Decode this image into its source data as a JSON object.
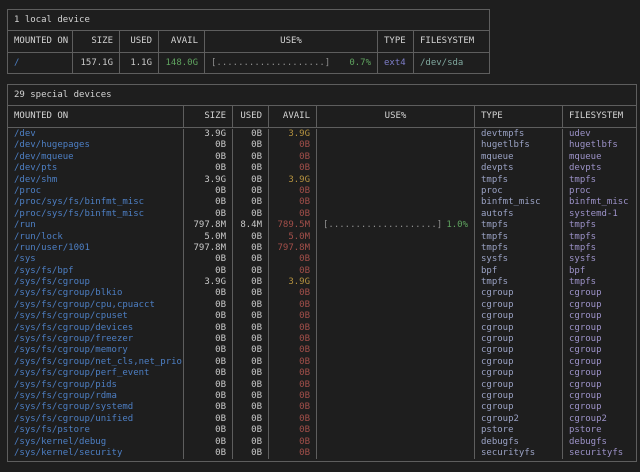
{
  "palette": {
    "background": "#1e1e1e",
    "border": "#5e5e5e",
    "title_text": "#d4d4d4",
    "header_text": "#d4d4d4",
    "blue": "#4d7fc4",
    "white": "#c9c9c9",
    "green": "#5fa35f",
    "yellow": "#b5923f",
    "red": "#a34f4a",
    "purple": "#7d7dc8",
    "teal": "#7fa79e",
    "lavender": "#9aa2c4",
    "violet": "#9c92c8",
    "gray": "#8f8f8f"
  },
  "tables": [
    {
      "title": "1 local device",
      "headers": [
        "MOUNTED ON",
        "SIZE",
        "USED",
        "AVAIL",
        "USE%",
        "TYPE",
        "FILESYSTEM"
      ],
      "mount_color": "blue",
      "value_color": "white",
      "bar_color": "gray",
      "pct_color": "green",
      "type_color": "purple",
      "fs_color": "teal",
      "rows": [
        {
          "mount": "/",
          "size": "157.1G",
          "used": "1.1G",
          "avail": "148.0G",
          "avail_color": "green",
          "bar": "[....................]",
          "pct": "0.7%",
          "type": "ext4",
          "fs": "/dev/sda"
        }
      ]
    },
    {
      "title": "29 special devices",
      "headers": [
        "MOUNTED ON",
        "SIZE",
        "USED",
        "AVAIL",
        "USE%",
        "TYPE",
        "FILESYSTEM"
      ],
      "mount_color": "blue",
      "value_color": "white",
      "bar_color": "gray",
      "pct_color": "green",
      "type_color": "lavender",
      "fs_color": "violet",
      "rows": [
        {
          "mount": "/dev",
          "size": "3.9G",
          "used": "0B",
          "avail": "3.9G",
          "avail_color": "yellow",
          "bar": "",
          "pct": "",
          "type": "devtmpfs",
          "fs": "udev"
        },
        {
          "mount": "/dev/hugepages",
          "size": "0B",
          "used": "0B",
          "avail": "0B",
          "avail_color": "red",
          "bar": "",
          "pct": "",
          "type": "hugetlbfs",
          "fs": "hugetlbfs"
        },
        {
          "mount": "/dev/mqueue",
          "size": "0B",
          "used": "0B",
          "avail": "0B",
          "avail_color": "red",
          "bar": "",
          "pct": "",
          "type": "mqueue",
          "fs": "mqueue"
        },
        {
          "mount": "/dev/pts",
          "size": "0B",
          "used": "0B",
          "avail": "0B",
          "avail_color": "red",
          "bar": "",
          "pct": "",
          "type": "devpts",
          "fs": "devpts"
        },
        {
          "mount": "/dev/shm",
          "size": "3.9G",
          "used": "0B",
          "avail": "3.9G",
          "avail_color": "yellow",
          "bar": "",
          "pct": "",
          "type": "tmpfs",
          "fs": "tmpfs"
        },
        {
          "mount": "/proc",
          "size": "0B",
          "used": "0B",
          "avail": "0B",
          "avail_color": "red",
          "bar": "",
          "pct": "",
          "type": "proc",
          "fs": "proc"
        },
        {
          "mount": "/proc/sys/fs/binfmt_misc",
          "size": "0B",
          "used": "0B",
          "avail": "0B",
          "avail_color": "red",
          "bar": "",
          "pct": "",
          "type": "binfmt_misc",
          "fs": "binfmt_misc"
        },
        {
          "mount": "/proc/sys/fs/binfmt_misc",
          "size": "0B",
          "used": "0B",
          "avail": "0B",
          "avail_color": "red",
          "bar": "",
          "pct": "",
          "type": "autofs",
          "fs": "systemd-1"
        },
        {
          "mount": "/run",
          "size": "797.8M",
          "used": "8.4M",
          "avail": "789.5M",
          "avail_color": "red",
          "bar": "[....................]",
          "pct": "1.0%",
          "type": "tmpfs",
          "fs": "tmpfs"
        },
        {
          "mount": "/run/lock",
          "size": "5.0M",
          "used": "0B",
          "avail": "5.0M",
          "avail_color": "red",
          "bar": "",
          "pct": "",
          "type": "tmpfs",
          "fs": "tmpfs"
        },
        {
          "mount": "/run/user/1001",
          "size": "797.8M",
          "used": "0B",
          "avail": "797.8M",
          "avail_color": "red",
          "bar": "",
          "pct": "",
          "type": "tmpfs",
          "fs": "tmpfs"
        },
        {
          "mount": "/sys",
          "size": "0B",
          "used": "0B",
          "avail": "0B",
          "avail_color": "red",
          "bar": "",
          "pct": "",
          "type": "sysfs",
          "fs": "sysfs"
        },
        {
          "mount": "/sys/fs/bpf",
          "size": "0B",
          "used": "0B",
          "avail": "0B",
          "avail_color": "red",
          "bar": "",
          "pct": "",
          "type": "bpf",
          "fs": "bpf"
        },
        {
          "mount": "/sys/fs/cgroup",
          "size": "3.9G",
          "used": "0B",
          "avail": "3.9G",
          "avail_color": "yellow",
          "bar": "",
          "pct": "",
          "type": "tmpfs",
          "fs": "tmpfs"
        },
        {
          "mount": "/sys/fs/cgroup/blkio",
          "size": "0B",
          "used": "0B",
          "avail": "0B",
          "avail_color": "red",
          "bar": "",
          "pct": "",
          "type": "cgroup",
          "fs": "cgroup"
        },
        {
          "mount": "/sys/fs/cgroup/cpu,cpuacct",
          "size": "0B",
          "used": "0B",
          "avail": "0B",
          "avail_color": "red",
          "bar": "",
          "pct": "",
          "type": "cgroup",
          "fs": "cgroup"
        },
        {
          "mount": "/sys/fs/cgroup/cpuset",
          "size": "0B",
          "used": "0B",
          "avail": "0B",
          "avail_color": "red",
          "bar": "",
          "pct": "",
          "type": "cgroup",
          "fs": "cgroup"
        },
        {
          "mount": "/sys/fs/cgroup/devices",
          "size": "0B",
          "used": "0B",
          "avail": "0B",
          "avail_color": "red",
          "bar": "",
          "pct": "",
          "type": "cgroup",
          "fs": "cgroup"
        },
        {
          "mount": "/sys/fs/cgroup/freezer",
          "size": "0B",
          "used": "0B",
          "avail": "0B",
          "avail_color": "red",
          "bar": "",
          "pct": "",
          "type": "cgroup",
          "fs": "cgroup"
        },
        {
          "mount": "/sys/fs/cgroup/memory",
          "size": "0B",
          "used": "0B",
          "avail": "0B",
          "avail_color": "red",
          "bar": "",
          "pct": "",
          "type": "cgroup",
          "fs": "cgroup"
        },
        {
          "mount": "/sys/fs/cgroup/net_cls,net_prio",
          "size": "0B",
          "used": "0B",
          "avail": "0B",
          "avail_color": "red",
          "bar": "",
          "pct": "",
          "type": "cgroup",
          "fs": "cgroup"
        },
        {
          "mount": "/sys/fs/cgroup/perf_event",
          "size": "0B",
          "used": "0B",
          "avail": "0B",
          "avail_color": "red",
          "bar": "",
          "pct": "",
          "type": "cgroup",
          "fs": "cgroup"
        },
        {
          "mount": "/sys/fs/cgroup/pids",
          "size": "0B",
          "used": "0B",
          "avail": "0B",
          "avail_color": "red",
          "bar": "",
          "pct": "",
          "type": "cgroup",
          "fs": "cgroup"
        },
        {
          "mount": "/sys/fs/cgroup/rdma",
          "size": "0B",
          "used": "0B",
          "avail": "0B",
          "avail_color": "red",
          "bar": "",
          "pct": "",
          "type": "cgroup",
          "fs": "cgroup"
        },
        {
          "mount": "/sys/fs/cgroup/systemd",
          "size": "0B",
          "used": "0B",
          "avail": "0B",
          "avail_color": "red",
          "bar": "",
          "pct": "",
          "type": "cgroup",
          "fs": "cgroup"
        },
        {
          "mount": "/sys/fs/cgroup/unified",
          "size": "0B",
          "used": "0B",
          "avail": "0B",
          "avail_color": "red",
          "bar": "",
          "pct": "",
          "type": "cgroup2",
          "fs": "cgroup2"
        },
        {
          "mount": "/sys/fs/pstore",
          "size": "0B",
          "used": "0B",
          "avail": "0B",
          "avail_color": "red",
          "bar": "",
          "pct": "",
          "type": "pstore",
          "fs": "pstore"
        },
        {
          "mount": "/sys/kernel/debug",
          "size": "0B",
          "used": "0B",
          "avail": "0B",
          "avail_color": "red",
          "bar": "",
          "pct": "",
          "type": "debugfs",
          "fs": "debugfs"
        },
        {
          "mount": "/sys/kernel/security",
          "size": "0B",
          "used": "0B",
          "avail": "0B",
          "avail_color": "red",
          "bar": "",
          "pct": "",
          "type": "securityfs",
          "fs": "securityfs"
        }
      ]
    }
  ]
}
